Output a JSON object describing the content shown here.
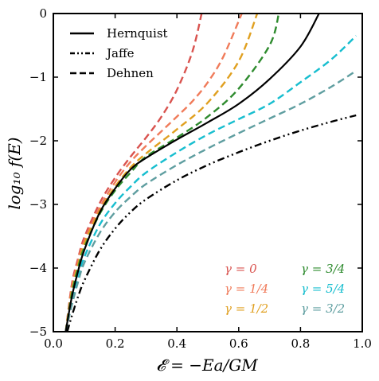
{
  "chart_data": {
    "type": "line",
    "xlabel": "𝓔 = −Ea/GM",
    "ylabel": "log₁₀ f(E)",
    "xlim": [
      0.0,
      1.0
    ],
    "ylim": [
      -5,
      0
    ],
    "x_ticks": [
      {
        "value": 0.0,
        "label": "0.0"
      },
      {
        "value": 0.2,
        "label": "0.2"
      },
      {
        "value": 0.4,
        "label": "0.4"
      },
      {
        "value": 0.6,
        "label": "0.6"
      },
      {
        "value": 0.8,
        "label": "0.8"
      },
      {
        "value": 1.0,
        "label": "1.0"
      }
    ],
    "y_ticks": [
      {
        "value": 0,
        "label": "0"
      },
      {
        "value": -1,
        "label": "−1"
      },
      {
        "value": -2,
        "label": "−2"
      },
      {
        "value": -3,
        "label": "−3"
      },
      {
        "value": -4,
        "label": "−4"
      },
      {
        "value": -5,
        "label": "−5"
      }
    ],
    "grid": false,
    "legend_position": "top-left",
    "legend": [
      {
        "label": "Hernquist",
        "style": "solid"
      },
      {
        "label": "Jaffe",
        "style": "dashdot"
      },
      {
        "label": "Dehnen",
        "style": "dashed"
      }
    ],
    "gamma_labels_position": "bottom-right",
    "series": [
      {
        "name": "Hernquist",
        "color": "#000000",
        "style": "solid",
        "x": [
          0.04,
          0.06,
          0.08,
          0.1,
          0.15,
          0.2,
          0.25,
          0.3,
          0.4,
          0.5,
          0.6,
          0.7,
          0.8,
          0.86
        ],
        "y": [
          -5.0,
          -4.45,
          -4.05,
          -3.72,
          -3.13,
          -2.75,
          -2.45,
          -2.27,
          -1.98,
          -1.71,
          -1.42,
          -1.03,
          -0.52,
          0.0
        ]
      },
      {
        "name": "Jaffe",
        "color": "#000000",
        "style": "dashdot",
        "x": [
          0.045,
          0.06,
          0.08,
          0.1,
          0.15,
          0.2,
          0.25,
          0.3,
          0.4,
          0.5,
          0.6,
          0.7,
          0.8,
          0.9,
          0.98
        ],
        "y": [
          -5.0,
          -4.75,
          -4.45,
          -4.2,
          -3.72,
          -3.38,
          -3.12,
          -2.92,
          -2.62,
          -2.38,
          -2.18,
          -2.0,
          -1.84,
          -1.7,
          -1.6
        ]
      },
      {
        "name": "γ = 0",
        "color": "#d9534f",
        "style": "dashed",
        "x": [
          0.04,
          0.06,
          0.08,
          0.1,
          0.15,
          0.2,
          0.25,
          0.3,
          0.35,
          0.4,
          0.45,
          0.48
        ],
        "y": [
          -5.0,
          -4.25,
          -3.85,
          -3.52,
          -2.98,
          -2.58,
          -2.25,
          -1.95,
          -1.62,
          -1.2,
          -0.6,
          0.0
        ]
      },
      {
        "name": "γ = 1/4",
        "color": "#f07b5a",
        "style": "dashed",
        "x": [
          0.04,
          0.06,
          0.08,
          0.1,
          0.15,
          0.2,
          0.25,
          0.3,
          0.35,
          0.4,
          0.45,
          0.5,
          0.55,
          0.61
        ],
        "y": [
          -5.0,
          -4.3,
          -3.9,
          -3.58,
          -3.05,
          -2.65,
          -2.33,
          -2.08,
          -1.85,
          -1.62,
          -1.38,
          -1.08,
          -0.68,
          0.0
        ]
      },
      {
        "name": "γ = 1/2",
        "color": "#e0a020",
        "style": "dashed",
        "x": [
          0.04,
          0.06,
          0.08,
          0.1,
          0.15,
          0.2,
          0.25,
          0.3,
          0.4,
          0.5,
          0.6,
          0.66
        ],
        "y": [
          -5.0,
          -4.35,
          -3.95,
          -3.62,
          -3.1,
          -2.72,
          -2.42,
          -2.2,
          -1.82,
          -1.4,
          -0.75,
          0.0
        ]
      },
      {
        "name": "γ = 3/4",
        "color": "#2e8b2e",
        "style": "dashed",
        "x": [
          0.04,
          0.06,
          0.08,
          0.1,
          0.15,
          0.2,
          0.25,
          0.3,
          0.4,
          0.5,
          0.6,
          0.7,
          0.73
        ],
        "y": [
          -5.0,
          -4.4,
          -4.0,
          -3.68,
          -3.15,
          -2.78,
          -2.5,
          -2.25,
          -1.95,
          -1.62,
          -1.18,
          -0.5,
          0.0
        ]
      },
      {
        "name": "γ = 5/4",
        "color": "#17becf",
        "style": "dashed",
        "x": [
          0.04,
          0.06,
          0.08,
          0.1,
          0.15,
          0.2,
          0.25,
          0.3,
          0.4,
          0.5,
          0.6,
          0.7,
          0.8,
          0.9,
          0.98
        ],
        "y": [
          -5.0,
          -4.52,
          -4.15,
          -3.83,
          -3.32,
          -2.98,
          -2.72,
          -2.5,
          -2.18,
          -1.9,
          -1.66,
          -1.42,
          -1.08,
          -0.72,
          -0.35
        ]
      },
      {
        "name": "γ = 3/2",
        "color": "#5f9ea0",
        "style": "dashed",
        "x": [
          0.04,
          0.06,
          0.08,
          0.1,
          0.15,
          0.2,
          0.25,
          0.3,
          0.4,
          0.5,
          0.6,
          0.7,
          0.8,
          0.9,
          0.98
        ],
        "y": [
          -5.0,
          -4.58,
          -4.22,
          -3.92,
          -3.45,
          -3.12,
          -2.88,
          -2.68,
          -2.38,
          -2.12,
          -1.88,
          -1.65,
          -1.42,
          -1.15,
          -0.9
        ]
      }
    ],
    "gamma_labels": [
      {
        "text": "γ = 0",
        "color": "#d9534f"
      },
      {
        "text": "γ = 1/4",
        "color": "#f07b5a"
      },
      {
        "text": "γ = 1/2",
        "color": "#e0a020"
      },
      {
        "text": "γ = 3/4",
        "color": "#2e8b2e"
      },
      {
        "text": "γ = 5/4",
        "color": "#17becf"
      },
      {
        "text": "γ = 3/2",
        "color": "#5f9ea0"
      }
    ]
  }
}
